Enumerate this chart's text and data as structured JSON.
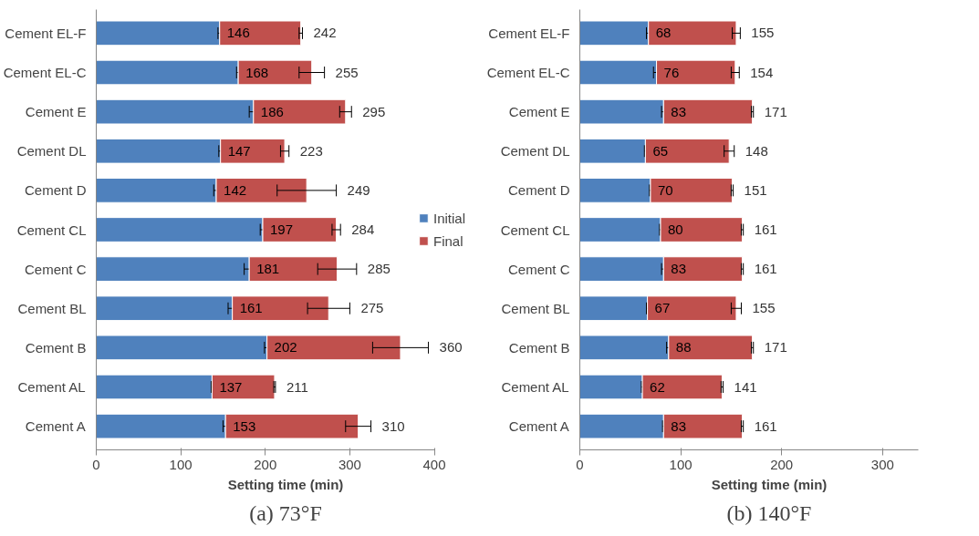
{
  "chart_data": [
    {
      "type": "bar",
      "orientation": "horizontal",
      "stacked": true,
      "xlabel": "Setting time (min)",
      "categories": [
        "Cement EL-F",
        "Cement EL-C",
        "Cement E",
        "Cement DL",
        "Cement D",
        "Cement CL",
        "Cement C",
        "Cement BL",
        "Cement B",
        "Cement AL",
        "Cement A"
      ],
      "series": [
        {
          "name": "Initial",
          "color": "#4f81bd",
          "values": [
            146,
            168,
            186,
            147,
            142,
            197,
            181,
            161,
            202,
            137,
            153
          ],
          "errors": [
            2,
            2,
            5,
            2,
            3,
            3,
            6,
            5,
            3,
            1,
            3
          ],
          "value_labels": [
            "146",
            "168",
            "186",
            "147",
            "142",
            "197",
            "181",
            "161",
            "202",
            "137",
            "153"
          ]
        },
        {
          "name": "Final",
          "color": "#c0504d",
          "values": [
            96,
            87,
            109,
            76,
            107,
            87,
            104,
            114,
            158,
            74,
            157
          ],
          "errors": [
            2,
            15,
            7,
            5,
            35,
            5,
            23,
            25,
            33,
            1,
            15
          ]
        }
      ],
      "totals": [
        "242",
        "255",
        "295",
        "223",
        "249",
        "284",
        "285",
        "275",
        "360",
        "211",
        "310"
      ],
      "xlim": [
        0,
        400
      ],
      "xticks": [
        0,
        100,
        200,
        300,
        400
      ],
      "legend": "right",
      "grid": false,
      "annotations": [
        "(a) 73°F"
      ]
    },
    {
      "type": "bar",
      "orientation": "horizontal",
      "stacked": true,
      "xlabel": "Setting time (min)",
      "categories": [
        "Cement EL-F",
        "Cement EL-C",
        "Cement E",
        "Cement DL",
        "Cement D",
        "Cement CL",
        "Cement C",
        "Cement BL",
        "Cement B",
        "Cement AL",
        "Cement A"
      ],
      "series": [
        {
          "color": "#4f81bd",
          "values": [
            68,
            76,
            83,
            65,
            70,
            80,
            83,
            67,
            88,
            62,
            83
          ],
          "errors": [
            2,
            3,
            2,
            1,
            1,
            1,
            2,
            1,
            2,
            1,
            1
          ],
          "value_labels": [
            "68",
            "76",
            "83",
            "65",
            "70",
            "80",
            "83",
            "67",
            "88",
            "62",
            "83"
          ]
        },
        {
          "color": "#c0504d",
          "values": [
            87,
            78,
            88,
            83,
            81,
            81,
            78,
            88,
            83,
            79,
            78
          ],
          "errors": [
            4,
            4,
            1,
            5,
            1,
            1,
            1,
            5,
            1,
            1,
            1
          ]
        }
      ],
      "totals": [
        "155",
        "154",
        "171",
        "148",
        "151",
        "161",
        "161",
        "155",
        "171",
        "141",
        "161"
      ],
      "xlim": [
        0,
        335
      ],
      "xticks": [
        0,
        100,
        200,
        300
      ],
      "legend": false,
      "grid": false,
      "annotations": [
        "(b) 140°F"
      ]
    }
  ]
}
